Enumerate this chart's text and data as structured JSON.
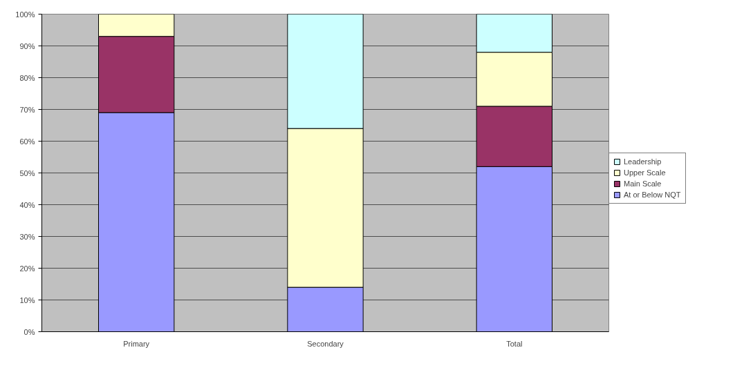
{
  "chart_data": {
    "type": "bar",
    "stacked": true,
    "categories": [
      "Primary",
      "Secondary",
      "Total"
    ],
    "series": [
      {
        "name": "At or Below NQT",
        "color": "#9999ff",
        "values": [
          69,
          14,
          52
        ]
      },
      {
        "name": "Main Scale",
        "color": "#993366",
        "values": [
          24,
          0,
          19
        ]
      },
      {
        "name": "Upper Scale",
        "color": "#ffffcc",
        "values": [
          7,
          50,
          17
        ]
      },
      {
        "name": "Leadership",
        "color": "#ccffff",
        "values": [
          0,
          36,
          12
        ]
      }
    ],
    "ylim": [
      0,
      100
    ],
    "yticks": [
      {
        "value": 0,
        "label": "0%"
      },
      {
        "value": 10,
        "label": "10%"
      },
      {
        "value": 20,
        "label": "20%"
      },
      {
        "value": 30,
        "label": "30%"
      },
      {
        "value": 40,
        "label": "40%"
      },
      {
        "value": 50,
        "label": "50%"
      },
      {
        "value": 60,
        "label": "60%"
      },
      {
        "value": 70,
        "label": "70%"
      },
      {
        "value": 80,
        "label": "80%"
      },
      {
        "value": 90,
        "label": "90%"
      },
      {
        "value": 100,
        "label": "100%"
      }
    ],
    "grid": "y",
    "legend": "right"
  }
}
